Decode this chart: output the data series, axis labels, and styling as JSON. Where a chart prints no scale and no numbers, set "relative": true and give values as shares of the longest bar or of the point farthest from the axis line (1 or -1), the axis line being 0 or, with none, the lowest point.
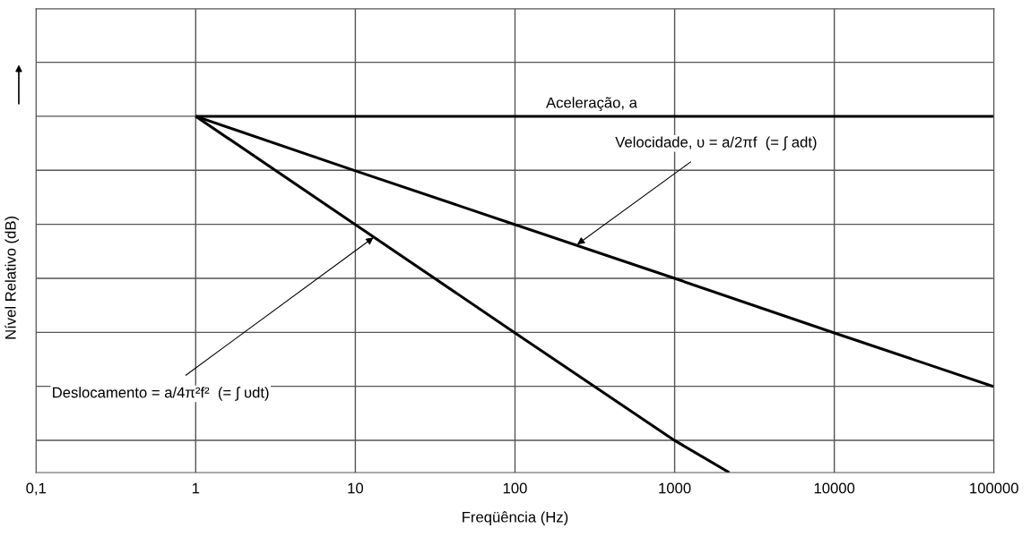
{
  "chart_data": {
    "type": "line",
    "relative": true,
    "xlabel": "Freqüência (Hz)",
    "ylabel": "Nível Relativo (dB)",
    "log": "x",
    "grid": true,
    "legend": false,
    "tick_labels": "x",
    "marker": "none",
    "line_style": "solid",
    "xlim": [
      0.1,
      100000
    ],
    "xticks": [
      {
        "value": 0.1,
        "label": "0,1"
      },
      1,
      10,
      100,
      1000,
      10000,
      100000
    ],
    "series": [
      {
        "color": "#000000",
        "x": [
          1,
          100000
        ],
        "values": [
          1,
          1
        ]
      },
      {
        "color": "#000000",
        "x": [
          1,
          10,
          100,
          1000,
          10000,
          100000
        ],
        "values": [
          1,
          0.847,
          0.696,
          0.545,
          0.392,
          0.241
        ]
      },
      {
        "color": "#000000",
        "x": [
          1,
          10,
          100,
          1000,
          2200
        ],
        "values": [
          1,
          0.696,
          0.392,
          0.09,
          0
        ]
      }
    ],
    "annotations": [
      "Aceleração, a",
      {
        "text": "Velocidade, υ = a/2πf  (= ∫ adt)",
        "x": 245,
        "y": 0.64
      },
      {
        "text": "Deslocamento = a/4π²f²  (= ∫ υdt)",
        "x": 13,
        "y": 0.66
      }
    ]
  }
}
